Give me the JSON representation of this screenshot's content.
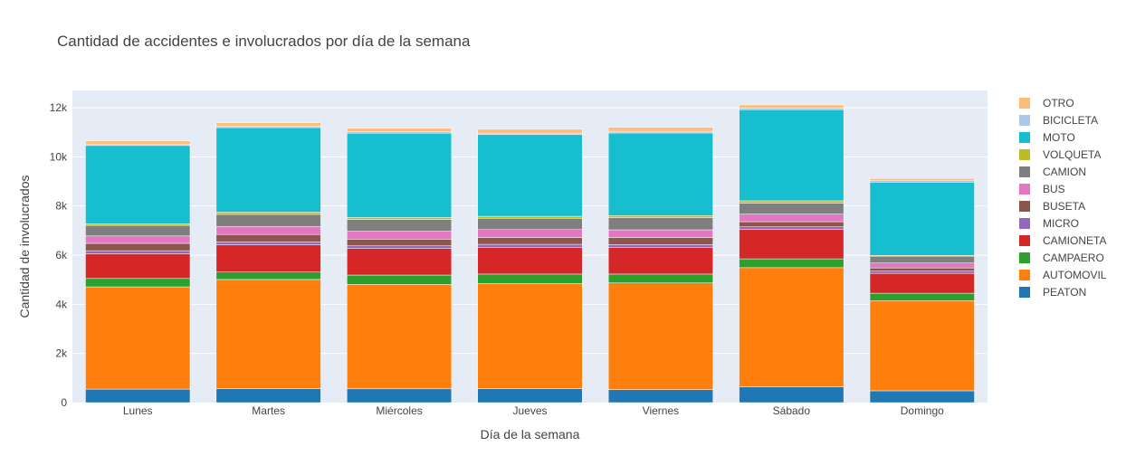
{
  "chart_data": {
    "type": "bar",
    "stacked": true,
    "title": "Cantidad de accidentes e involucrados por día de la semana",
    "xlabel": "Día de la semana",
    "ylabel": "Cantidad de involucrados",
    "ylim": [
      0,
      12700
    ],
    "yticks": [
      0,
      2000,
      4000,
      6000,
      8000,
      10000,
      12000
    ],
    "ytick_labels": [
      "0",
      "2k",
      "4k",
      "6k",
      "8k",
      "10k",
      "12k"
    ],
    "grid": true,
    "legend_position": "right",
    "plot_background": "#e5ecf6",
    "categories": [
      "Lunes",
      "Martes",
      "Miércoles",
      "Jueves",
      "Viernes",
      "Sábado",
      "Domingo"
    ],
    "series": [
      {
        "name": "PEATON",
        "color": "#1f77b4",
        "values": [
          550,
          570,
          560,
          570,
          530,
          640,
          480
        ]
      },
      {
        "name": "AUTOMOVIL",
        "color": "#ff7f0e",
        "values": [
          4160,
          4440,
          4250,
          4270,
          4340,
          4850,
          3670
        ]
      },
      {
        "name": "CAMPAERO",
        "color": "#2ca02c",
        "values": [
          340,
          300,
          380,
          390,
          360,
          360,
          300
        ]
      },
      {
        "name": "CAMIONETA",
        "color": "#d62728",
        "values": [
          1010,
          1110,
          1080,
          1090,
          1090,
          1190,
          810
        ]
      },
      {
        "name": "MICRO",
        "color": "#9467bd",
        "values": [
          120,
          120,
          110,
          120,
          110,
          110,
          90
        ]
      },
      {
        "name": "BUSETA",
        "color": "#8c564b",
        "values": [
          300,
          300,
          270,
          280,
          290,
          210,
          130
        ]
      },
      {
        "name": "BUS",
        "color": "#e377c2",
        "values": [
          300,
          330,
          320,
          320,
          310,
          310,
          200
        ]
      },
      {
        "name": "CAMION",
        "color": "#7f7f7f",
        "values": [
          430,
          490,
          480,
          460,
          500,
          450,
          280
        ]
      },
      {
        "name": "VOLQUETA",
        "color": "#bcbd22",
        "values": [
          70,
          90,
          80,
          80,
          80,
          90,
          30
        ]
      },
      {
        "name": "MOTO",
        "color": "#17becf",
        "values": [
          3180,
          3440,
          3430,
          3330,
          3360,
          3710,
          2980
        ]
      },
      {
        "name": "BICICLETA",
        "color": "#aec7e8",
        "values": [
          60,
          60,
          60,
          60,
          70,
          60,
          60
        ]
      },
      {
        "name": "OTRO",
        "color": "#ffbb78",
        "values": [
          130,
          140,
          140,
          150,
          160,
          130,
          90
        ]
      }
    ]
  }
}
